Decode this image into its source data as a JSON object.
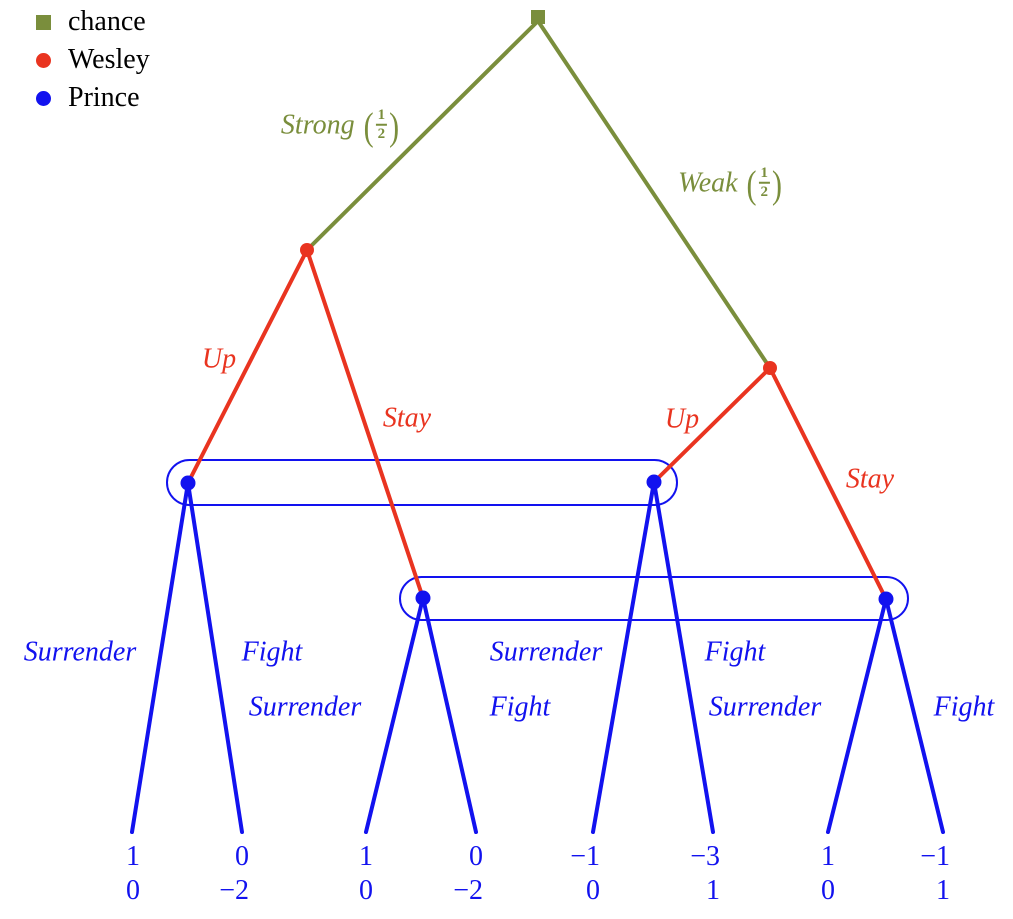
{
  "colors": {
    "chance": "#7A8E3C",
    "wesley": "#E93420",
    "prince": "#1212EF",
    "text": "#000000",
    "background": "#FFFFFF"
  },
  "legend": {
    "items": [
      {
        "player": "chance",
        "label": "chance"
      },
      {
        "player": "wesley",
        "label": "Wesley"
      },
      {
        "player": "prince",
        "label": "Prince"
      }
    ]
  },
  "tree": {
    "root_player": "chance",
    "chance_branches": [
      {
        "action": "Strong",
        "prob_num": "1",
        "prob_den": "2"
      },
      {
        "action": "Weak",
        "prob_num": "1",
        "prob_den": "2"
      }
    ],
    "wesley_branches": [
      {
        "action": "Up"
      },
      {
        "action": "Stay"
      },
      {
        "action": "Up"
      },
      {
        "action": "Stay"
      }
    ],
    "prince_branches": [
      {
        "action": "Surrender"
      },
      {
        "action": "Fight"
      },
      {
        "action": "Surrender"
      },
      {
        "action": "Fight"
      },
      {
        "action": "Surrender"
      },
      {
        "action": "Fight"
      },
      {
        "action": "Surrender"
      },
      {
        "action": "Fight"
      }
    ],
    "leaves": [
      {
        "payoffs": [
          "1",
          "0"
        ]
      },
      {
        "payoffs": [
          "0",
          "−2"
        ]
      },
      {
        "payoffs": [
          "1",
          "0"
        ]
      },
      {
        "payoffs": [
          "0",
          "−2"
        ]
      },
      {
        "payoffs": [
          "−1",
          "0"
        ]
      },
      {
        "payoffs": [
          "−3",
          "1"
        ]
      },
      {
        "payoffs": [
          "1",
          "0"
        ]
      },
      {
        "payoffs": [
          "−1",
          "1"
        ]
      }
    ]
  }
}
